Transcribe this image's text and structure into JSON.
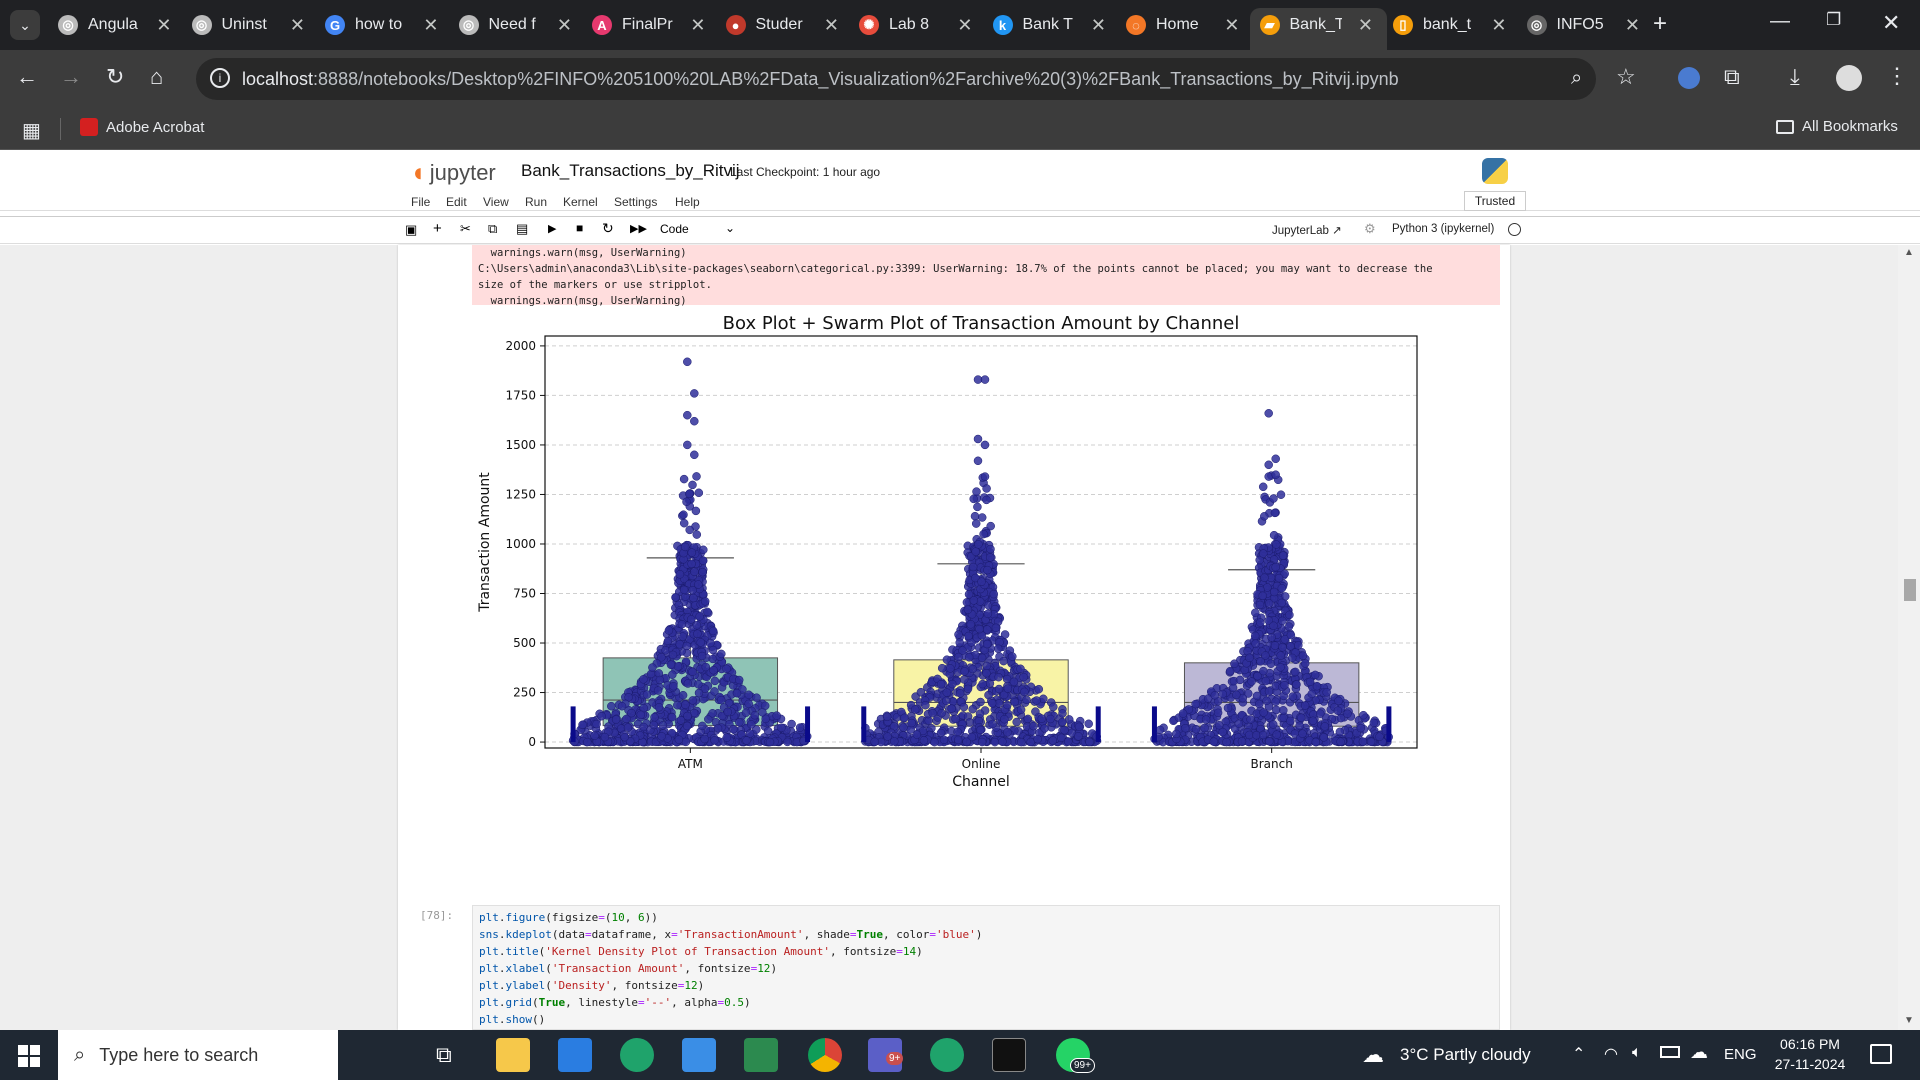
{
  "browser": {
    "tabs": [
      {
        "title": "Angula",
        "favicon_color": "#bbbbbb",
        "glyph": "◎"
      },
      {
        "title": "Uninst",
        "favicon_color": "#bbbbbb",
        "glyph": "◎"
      },
      {
        "title": "how to",
        "favicon_color": "#4285f4",
        "glyph": "G"
      },
      {
        "title": "Need f",
        "favicon_color": "#bbbbbb",
        "glyph": "◎"
      },
      {
        "title": "FinalPr",
        "favicon_color": "#e6396e",
        "glyph": "A"
      },
      {
        "title": "Studer",
        "favicon_color": "#c0392b",
        "glyph": "●"
      },
      {
        "title": "Lab 8",
        "favicon_color": "#e74c3c",
        "glyph": "✺"
      },
      {
        "title": "Bank T",
        "favicon_color": "#2196f3",
        "glyph": "k"
      },
      {
        "title": "Home",
        "favicon_color": "#f37726",
        "glyph": "◌"
      },
      {
        "title": "Bank_T",
        "favicon_color": "#f59e0b",
        "glyph": "▰"
      },
      {
        "title": "bank_t",
        "favicon_color": "#f59e0b",
        "glyph": "▯"
      },
      {
        "title": "INFO5",
        "favicon_color": "#666666",
        "glyph": "◎"
      }
    ],
    "active_tab_index": 9,
    "url_host": "localhost",
    "url_rest": ":8888/notebooks/Desktop%2FINFO%205100%20LAB%2FData_Visualization%2Farchive%20(3)%2FBank_Transactions_by_Ritvij.ipynb",
    "bookmarks": {
      "acrobat": "Adobe Acrobat",
      "all": "All Bookmarks"
    }
  },
  "jupyter": {
    "logo_text": "jupyter",
    "notebook_name": "Bank_Transactions_by_Ritvij",
    "checkpoint": "Last Checkpoint: 1 hour ago",
    "trusted": "Trusted",
    "menu": [
      "File",
      "Edit",
      "View",
      "Run",
      "Kernel",
      "Settings",
      "Help"
    ],
    "cell_type": "Code",
    "jupyterlab_link": "JupyterLab",
    "kernel": "Python 3 (ipykernel)"
  },
  "output": {
    "warning_lines": [
      "  warnings.warn(msg, UserWarning)",
      "C:\\Users\\admin\\anaconda3\\Lib\\site-packages\\seaborn\\categorical.py:3399: UserWarning: 18.7% of the points cannot be placed; you may want to decrease the",
      "size of the markers or use stripplot.",
      "  warnings.warn(msg, UserWarning)"
    ]
  },
  "chart_data": {
    "type": "box+swarm",
    "title": "Box Plot + Swarm Plot of Transaction Amount by Channel",
    "xlabel": "Channel",
    "ylabel": "Transaction Amount",
    "categories": [
      "ATM",
      "Online",
      "Branch"
    ],
    "ylim": [
      -30,
      2050
    ],
    "yticks": [
      0,
      250,
      500,
      750,
      1000,
      1250,
      1500,
      1750,
      2000
    ],
    "grid": "y dashed",
    "box_colors": [
      "#8fc4b6",
      "#f8f3a6",
      "#bcb8d6"
    ],
    "point_color": "#2f2f9a",
    "boxes": [
      {
        "category": "ATM",
        "q1": 83,
        "median": 212,
        "q3": 425,
        "whisker_low": 0,
        "whisker_high": 930
      },
      {
        "category": "Online",
        "q1": 80,
        "median": 200,
        "q3": 415,
        "whisker_low": 0,
        "whisker_high": 900
      },
      {
        "category": "Branch",
        "q1": 80,
        "median": 200,
        "q3": 400,
        "whisker_low": 0,
        "whisker_high": 870
      }
    ],
    "outliers_top": [
      {
        "category": "ATM",
        "values": [
          1920,
          1760,
          1650,
          1620,
          1500,
          1450
        ]
      },
      {
        "category": "Online",
        "values": [
          1830,
          1830,
          1530,
          1500,
          1420,
          1340
        ]
      },
      {
        "category": "Branch",
        "values": [
          1660,
          1430,
          1400,
          1350
        ]
      }
    ]
  },
  "code_cell": {
    "prompt": "[78]:",
    "lines": [
      "plt.figure(figsize=(10, 6))",
      "sns.kdeplot(data=dataframe, x='TransactionAmount', shade=True, color='blue')",
      "plt.title('Kernel Density Plot of Transaction Amount', fontsize=14)",
      "plt.xlabel('Transaction Amount', fontsize=12)",
      "plt.ylabel('Density', fontsize=12)",
      "plt.grid(True, linestyle='--', alpha=0.5)",
      "plt.show()"
    ]
  },
  "taskbar": {
    "search_placeholder": "Type here to search",
    "weather": "3°C  Partly cloudy",
    "lang": "ENG",
    "time": "06:16 PM",
    "date": "27-11-2024",
    "whatsapp_badge": "99+",
    "teams_badge": "9+"
  }
}
